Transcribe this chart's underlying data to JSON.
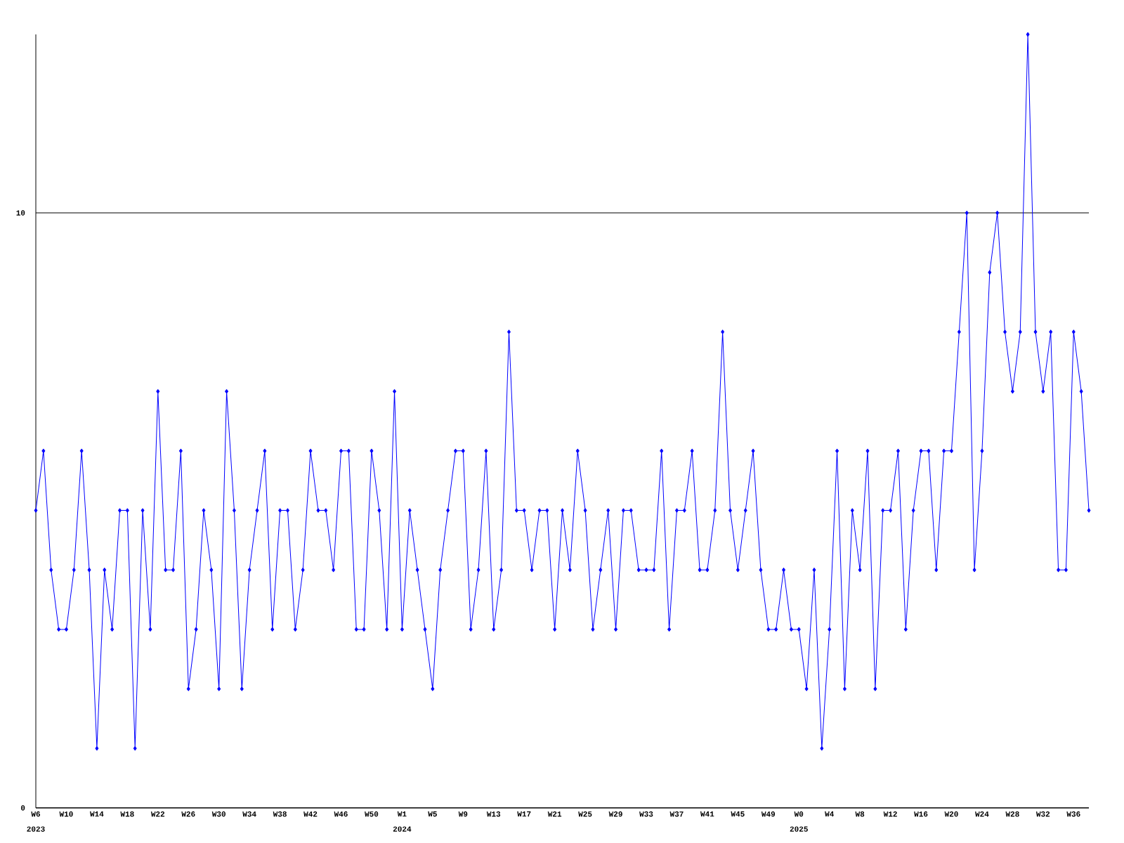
{
  "chart_data": {
    "type": "line",
    "categories": [
      "W6",
      null,
      null,
      null,
      "W10",
      null,
      null,
      null,
      "W14",
      null,
      null,
      null,
      "W18",
      null,
      null,
      null,
      "W22",
      null,
      null,
      null,
      "W26",
      null,
      null,
      null,
      "W30",
      null,
      null,
      null,
      "W34",
      null,
      null,
      null,
      "W38",
      null,
      null,
      null,
      "W42",
      null,
      null,
      null,
      "W46",
      null,
      null,
      null,
      "W50",
      null,
      null,
      null,
      "W1",
      null,
      null,
      null,
      "W5",
      null,
      null,
      null,
      "W9",
      null,
      null,
      null,
      "W13",
      null,
      null,
      null,
      "W17",
      null,
      null,
      null,
      "W21",
      null,
      null,
      null,
      "W25",
      null,
      null,
      null,
      "W29",
      null,
      null,
      null,
      "W33",
      null,
      null,
      null,
      "W37",
      null,
      null,
      null,
      "W41",
      null,
      null,
      null,
      "W45",
      null,
      null,
      null,
      "W49",
      null,
      null,
      null,
      "W0",
      null,
      null,
      null,
      "W4",
      null,
      null,
      null,
      "W8",
      null,
      null,
      null,
      "W12",
      null,
      null,
      null,
      "W16",
      null,
      null,
      null,
      "W20",
      null,
      null,
      null,
      "W24",
      null,
      null,
      null,
      "W28",
      null,
      null,
      null,
      "W32",
      null,
      null,
      null,
      "W36",
      null,
      null
    ],
    "values": [
      5,
      6,
      4,
      3,
      3,
      4,
      6,
      4,
      1,
      4,
      3,
      5,
      5,
      1,
      5,
      3,
      7,
      4,
      4,
      6,
      2,
      3,
      5,
      4,
      2,
      7,
      5,
      2,
      4,
      5,
      6,
      3,
      5,
      5,
      3,
      4,
      6,
      5,
      5,
      4,
      6,
      6,
      3,
      3,
      6,
      5,
      3,
      7,
      3,
      5,
      4,
      3,
      2,
      4,
      5,
      6,
      6,
      3,
      4,
      6,
      3,
      4,
      8,
      5,
      5,
      4,
      5,
      5,
      3,
      5,
      4,
      6,
      5,
      3,
      4,
      5,
      3,
      5,
      5,
      4,
      4,
      4,
      6,
      3,
      5,
      5,
      6,
      4,
      4,
      5,
      8,
      5,
      4,
      5,
      6,
      4,
      3,
      3,
      4,
      3,
      3,
      2,
      4,
      1,
      3,
      6,
      2,
      5,
      4,
      6,
      2,
      5,
      5,
      6,
      3,
      5,
      6,
      6,
      4,
      6,
      6,
      8,
      10,
      4,
      6,
      9,
      10,
      8,
      7,
      8,
      13,
      8,
      7,
      8,
      4,
      4,
      8,
      7,
      5
    ],
    "color": "#0000ff",
    "marker": "diamond",
    "line_style": "solid",
    "ylim": [
      0,
      13
    ],
    "yticks": [
      0,
      10
    ],
    "grid": "y",
    "annotations": [
      "2023",
      "2024",
      "2025"
    ]
  }
}
